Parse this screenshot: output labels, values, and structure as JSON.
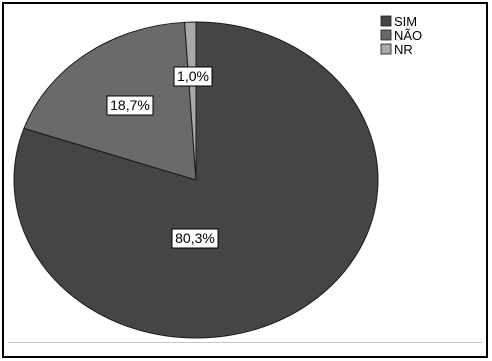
{
  "chart_data": {
    "type": "pie",
    "title": "",
    "categories": [
      "SIM",
      "NÃO",
      "NR"
    ],
    "values": [
      80.3,
      18.7,
      1.0
    ],
    "labels": [
      "80,3%",
      "18,7%",
      "1,0%"
    ],
    "colors": [
      "#454545",
      "#6a6a6a",
      "#a9a9a9"
    ],
    "legend_position": "top-right",
    "grid": false
  }
}
